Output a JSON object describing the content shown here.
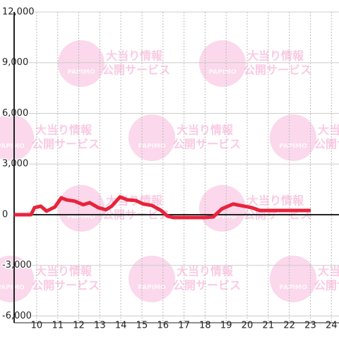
{
  "chart_data": {
    "type": "line",
    "x": [
      8.93,
      9.73,
      9.9,
      10.2,
      10.47,
      10.87,
      11.17,
      11.41,
      11.81,
      12.21,
      12.52,
      12.92,
      13.29,
      13.56,
      13.96,
      14.3,
      14.7,
      15.07,
      15.47,
      15.91,
      16.21,
      16.48,
      17.99,
      18.39,
      18.79,
      19.33,
      19.66,
      20.2,
      20.6,
      23.02
    ],
    "series": [
      {
        "color": "#e8243c",
        "values": [
          0,
          0,
          420,
          500,
          210,
          460,
          1000,
          880,
          800,
          590,
          710,
          420,
          290,
          500,
          1050,
          880,
          840,
          630,
          550,
          250,
          -80,
          -170,
          -170,
          -130,
          340,
          630,
          550,
          420,
          250,
          250
        ]
      }
    ],
    "xlim": [
      8.93,
      24.36
    ],
    "xticks": [
      10,
      11,
      12,
      13,
      14,
      15,
      16,
      17,
      18,
      19,
      20,
      21,
      22,
      23,
      24
    ],
    "ylim": [
      -6400,
      12000
    ],
    "yticks": [
      {
        "value": -6000,
        "label": "-6,000"
      },
      {
        "value": -3000,
        "label": "-3,000"
      },
      0,
      {
        "value": 3000,
        "label": "3,000"
      },
      {
        "value": 6000,
        "label": "6,000"
      },
      {
        "value": 9000,
        "label": "9,000"
      },
      {
        "value": 12000,
        "label": "12,000"
      }
    ],
    "grid": true
  },
  "watermark": {
    "brand": "PAPIMO",
    "line1": "大当り情報",
    "line2": "公開サービス"
  }
}
